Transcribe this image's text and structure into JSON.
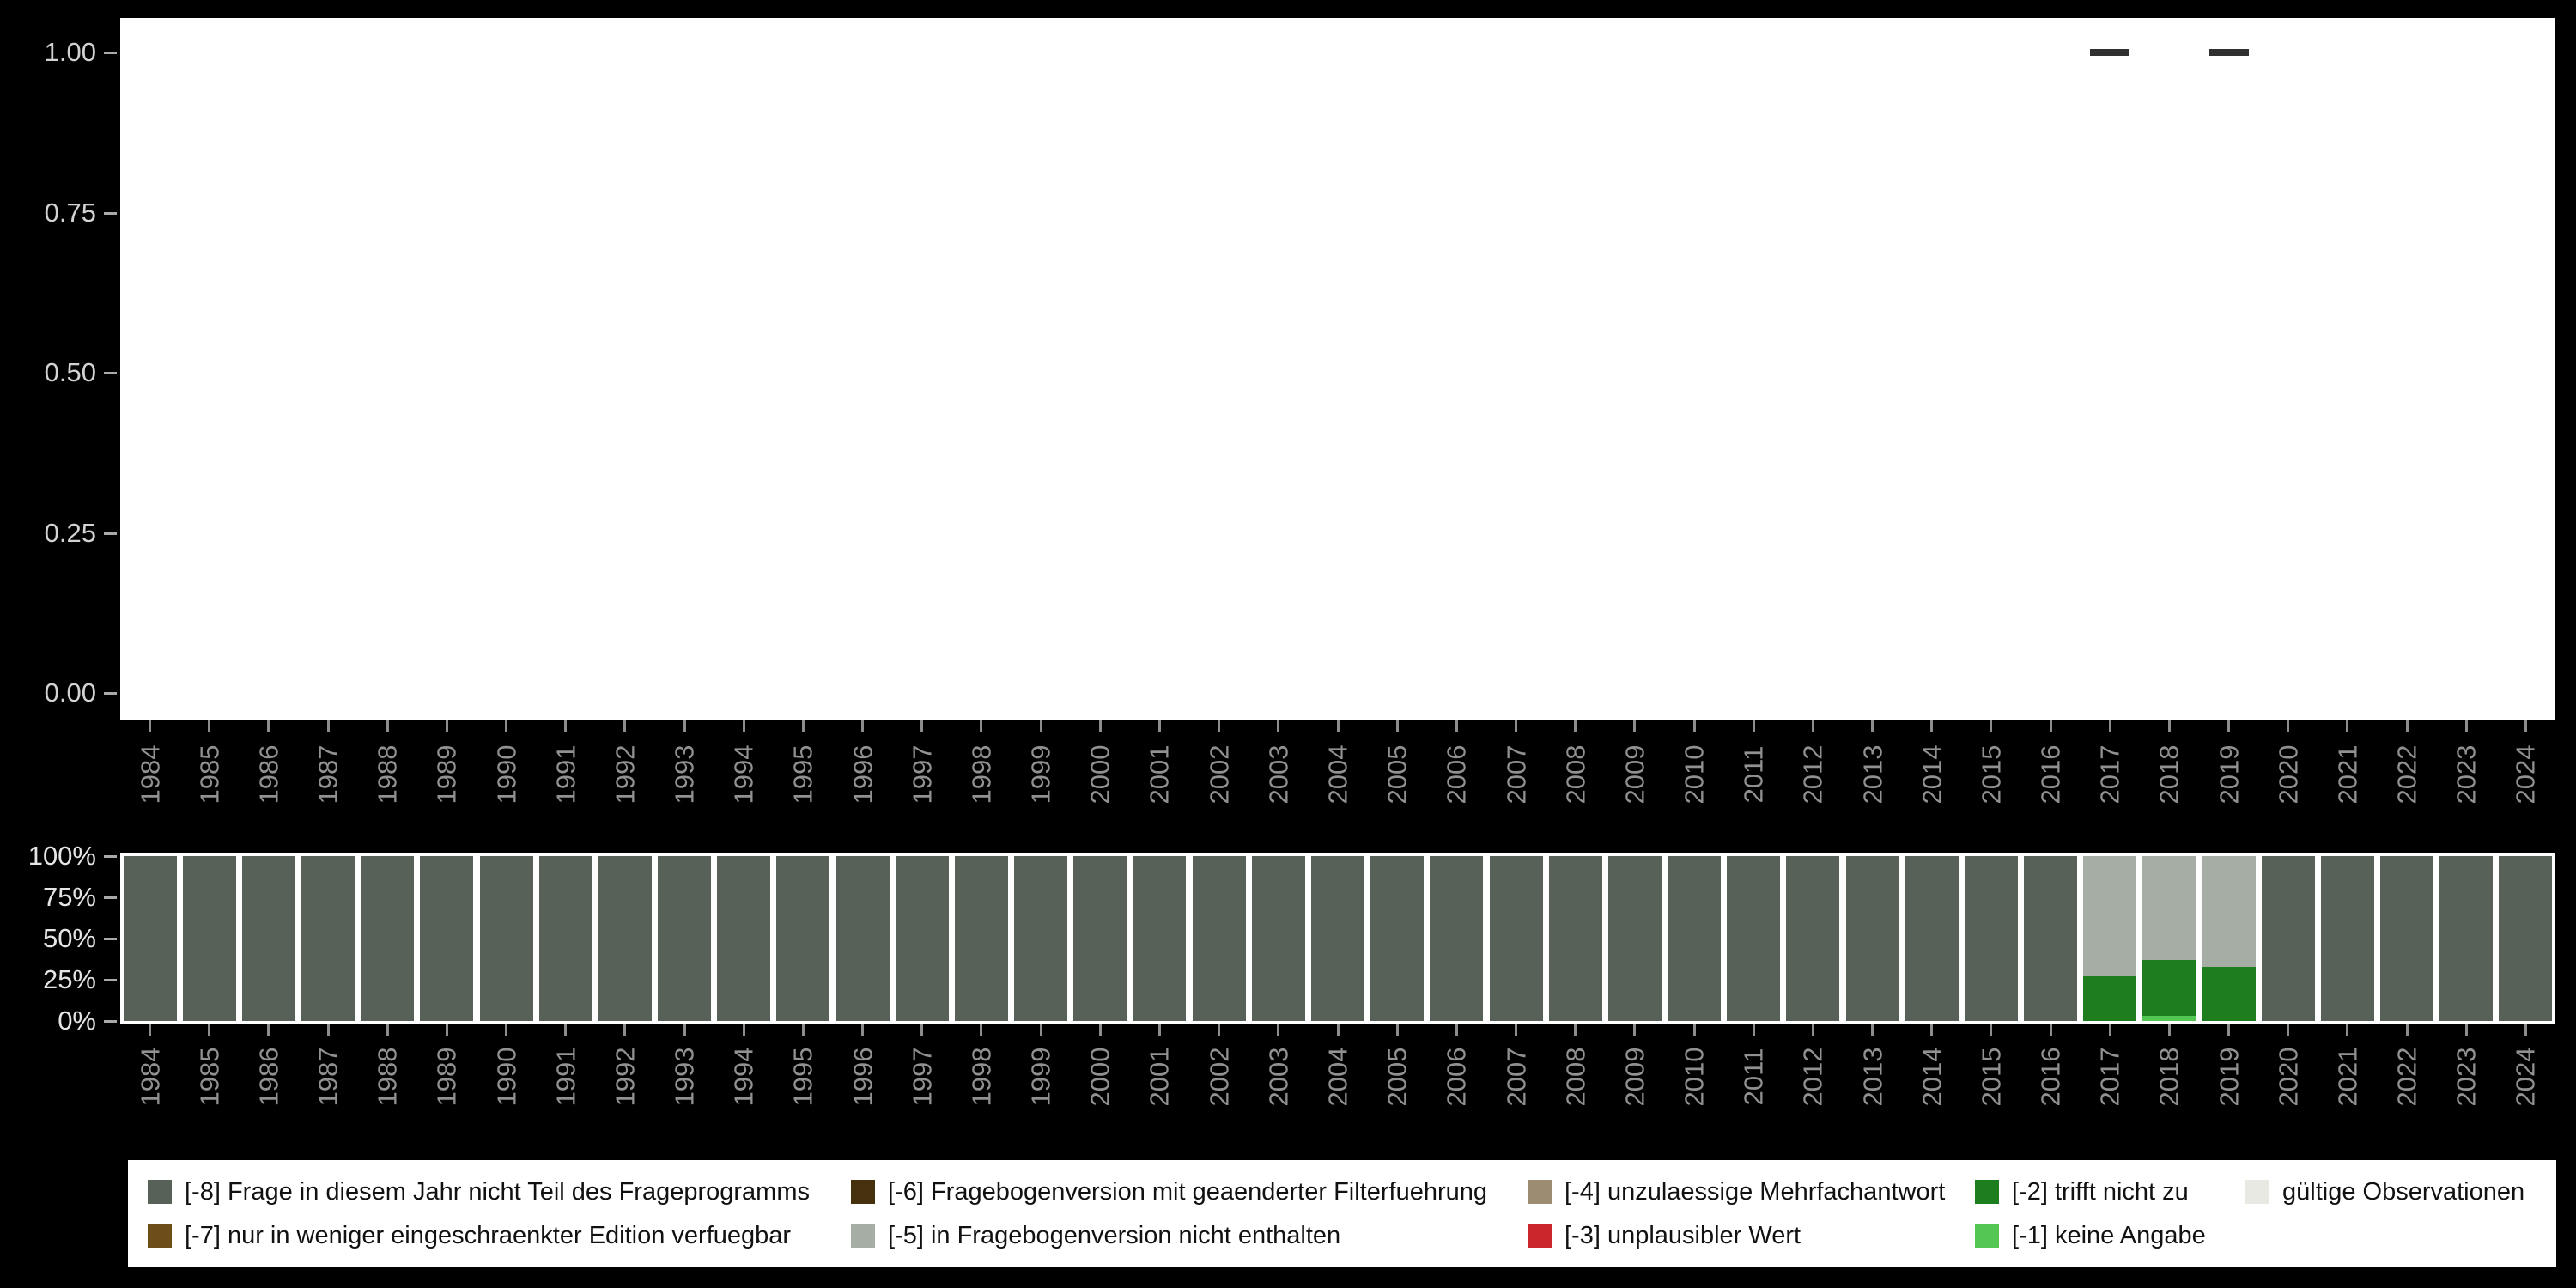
{
  "figure": {
    "background": "#000000",
    "panel_background": "#ffffff",
    "axis_tick_color": "#8c8c8c",
    "year_label_color": "#919191",
    "top_ylabel_color": "#d2d2d2",
    "bottom_ylabel_color": "#e5e5e5"
  },
  "axis": {
    "years": [
      "1984",
      "1985",
      "1986",
      "1987",
      "1988",
      "1989",
      "1990",
      "1991",
      "1992",
      "1993",
      "1994",
      "1995",
      "1996",
      "1997",
      "1998",
      "1999",
      "2000",
      "2001",
      "2002",
      "2003",
      "2004",
      "2005",
      "2006",
      "2007",
      "2008",
      "2009",
      "2010",
      "2011",
      "2012",
      "2013",
      "2014",
      "2015",
      "2016",
      "2017",
      "2018",
      "2019",
      "2020",
      "2021",
      "2022",
      "2023",
      "2024"
    ],
    "top_yticks": [
      {
        "label": "1.00",
        "value": 1.0
      },
      {
        "label": "0.75",
        "value": 0.75
      },
      {
        "label": "0.50",
        "value": 0.5
      },
      {
        "label": "0.25",
        "value": 0.25
      },
      {
        "label": "0.00",
        "value": 0.0
      }
    ],
    "bottom_yticks": [
      {
        "label": "100%",
        "value": 100
      },
      {
        "label": "75%",
        "value": 75
      },
      {
        "label": "50%",
        "value": 50
      },
      {
        "label": "25%",
        "value": 25
      },
      {
        "label": "0%",
        "value": 0
      }
    ]
  },
  "categories": {
    "m8": {
      "label": "[-8] Frage in diesem Jahr nicht Teil des Frageprogramms",
      "color": "#586157"
    },
    "m7": {
      "label": "[-7] nur in weniger eingeschraenkter Edition verfuegbar",
      "color": "#6D4D18"
    },
    "m6": {
      "label": "[-6] Fragebogenversion mit geaenderter Filterfuehrung",
      "color": "#46310F"
    },
    "m5": {
      "label": "[-5] in Fragebogenversion nicht enthalten",
      "color": "#A6ADA5"
    },
    "m4": {
      "label": "[-4] unzulaessige Mehrfachantwort",
      "color": "#9C8C72"
    },
    "m3": {
      "label": "[-3] unplausibler Wert",
      "color": "#C9252B"
    },
    "m2": {
      "label": "[-2] trifft nicht zu",
      "color": "#1E7E1E"
    },
    "m1": {
      "label": "[-1] keine Angabe",
      "color": "#53C653"
    },
    "valid": {
      "label": "gültige Observationen",
      "color": "#E9E9E4"
    }
  },
  "legend": {
    "row1": [
      "m8",
      "m6",
      "m4",
      "m2",
      "valid"
    ],
    "row2": [
      "m7",
      "m5",
      "m3",
      "m1"
    ]
  },
  "chart_data": [
    {
      "type": "scatter",
      "title": "",
      "xlabel": "",
      "ylabel": "",
      "x": [
        "1984",
        "1985",
        "1986",
        "1987",
        "1988",
        "1989",
        "1990",
        "1991",
        "1992",
        "1993",
        "1994",
        "1995",
        "1996",
        "1997",
        "1998",
        "1999",
        "2000",
        "2001",
        "2002",
        "2003",
        "2004",
        "2005",
        "2006",
        "2007",
        "2008",
        "2009",
        "2010",
        "2011",
        "2012",
        "2013",
        "2014",
        "2015",
        "2016",
        "2017",
        "2018",
        "2019",
        "2020",
        "2021",
        "2022",
        "2023",
        "2024"
      ],
      "ylim": [
        0,
        1
      ],
      "grid": false,
      "marker": {
        "shape": "dash",
        "color": "#303030"
      },
      "points": [
        {
          "year": "2017",
          "value": 1.0
        },
        {
          "year": "2019",
          "value": 1.0
        }
      ]
    },
    {
      "type": "bar",
      "stacked": true,
      "percent": true,
      "title": "",
      "xlabel": "",
      "ylabel": "",
      "ylim": [
        0,
        100
      ],
      "grid": false,
      "categories": [
        "1984",
        "1985",
        "1986",
        "1987",
        "1988",
        "1989",
        "1990",
        "1991",
        "1992",
        "1993",
        "1994",
        "1995",
        "1996",
        "1997",
        "1998",
        "1999",
        "2000",
        "2001",
        "2002",
        "2003",
        "2004",
        "2005",
        "2006",
        "2007",
        "2008",
        "2009",
        "2010",
        "2011",
        "2012",
        "2013",
        "2014",
        "2015",
        "2016",
        "2017",
        "2018",
        "2019",
        "2020",
        "2021",
        "2022",
        "2023",
        "2024"
      ],
      "default_stack": [
        {
          "key": "m8",
          "value": 100
        }
      ],
      "stacks": {
        "2017": [
          {
            "key": "m2",
            "value": 27
          },
          {
            "key": "m5",
            "value": 73
          }
        ],
        "2018": [
          {
            "key": "m1",
            "value": 3
          },
          {
            "key": "m2",
            "value": 34
          },
          {
            "key": "m5",
            "value": 63
          }
        ],
        "2019": [
          {
            "key": "m2",
            "value": 33
          },
          {
            "key": "m5",
            "value": 67
          }
        ]
      }
    }
  ]
}
